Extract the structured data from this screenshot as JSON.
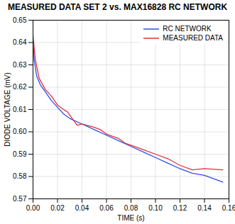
{
  "chart_data": {
    "type": "line",
    "title": "MEASURED DATA SET 2 vs. MAX16828 RC NETWORK",
    "x_label": "TIME (s)",
    "y_label": "DIODE VOLTAGE (mV)",
    "xlim": [
      0,
      0.16
    ],
    "xticks": [
      {
        "value": 0,
        "label": "0.00"
      },
      {
        "value": 0.02,
        "label": "0.02"
      },
      {
        "value": 0.04,
        "label": "0.04"
      },
      {
        "value": 0.06,
        "label": "0.06"
      },
      {
        "value": 0.08,
        "label": "0.08"
      },
      {
        "value": 0.1,
        "label": "0.10"
      },
      {
        "value": 0.12,
        "label": "0.12"
      },
      {
        "value": 0.14,
        "label": "0.14"
      },
      {
        "value": 0.16,
        "label": "0.16"
      }
    ],
    "ylim": [
      0.57,
      0.65
    ],
    "yticks": [
      0.57,
      0.58,
      0.59,
      {
        "value": 0.6,
        "label": "0.60"
      },
      0.61,
      0.62,
      0.63,
      0.64,
      0.65
    ],
    "grid": true,
    "legend": "upper right",
    "series": [
      {
        "name": "RC NETWORK",
        "color": "#2f4fe0",
        "x": [
          0,
          0.001,
          0.003,
          0.006,
          0.01,
          0.015,
          0.02,
          0.025,
          0.03,
          0.04,
          0.05,
          0.06,
          0.07,
          0.08,
          0.09,
          0.1,
          0.11,
          0.12,
          0.13,
          0.14,
          0.155
        ],
        "values": [
          0.641,
          0.632,
          0.625,
          0.621,
          0.618,
          0.614,
          0.611,
          0.608,
          0.606,
          0.6035,
          0.601,
          0.5985,
          0.596,
          0.5935,
          0.591,
          0.5885,
          0.586,
          0.5835,
          0.5815,
          0.5805,
          0.5775
        ]
      },
      {
        "name": "MEASURED DATA",
        "color": "#e0303a",
        "x": [
          0,
          0.002,
          0.005,
          0.01,
          0.015,
          0.02,
          0.025,
          0.028,
          0.032,
          0.036,
          0.04,
          0.05,
          0.055,
          0.06,
          0.065,
          0.07,
          0.075,
          0.08,
          0.09,
          0.1,
          0.11,
          0.12,
          0.13,
          0.14,
          0.155
        ],
        "values": [
          0.643,
          0.632,
          0.624,
          0.619,
          0.616,
          0.612,
          0.61,
          0.609,
          0.606,
          0.603,
          0.6035,
          0.602,
          0.601,
          0.599,
          0.598,
          0.597,
          0.595,
          0.594,
          0.592,
          0.59,
          0.588,
          0.585,
          0.583,
          0.5835,
          0.583
        ]
      }
    ]
  }
}
